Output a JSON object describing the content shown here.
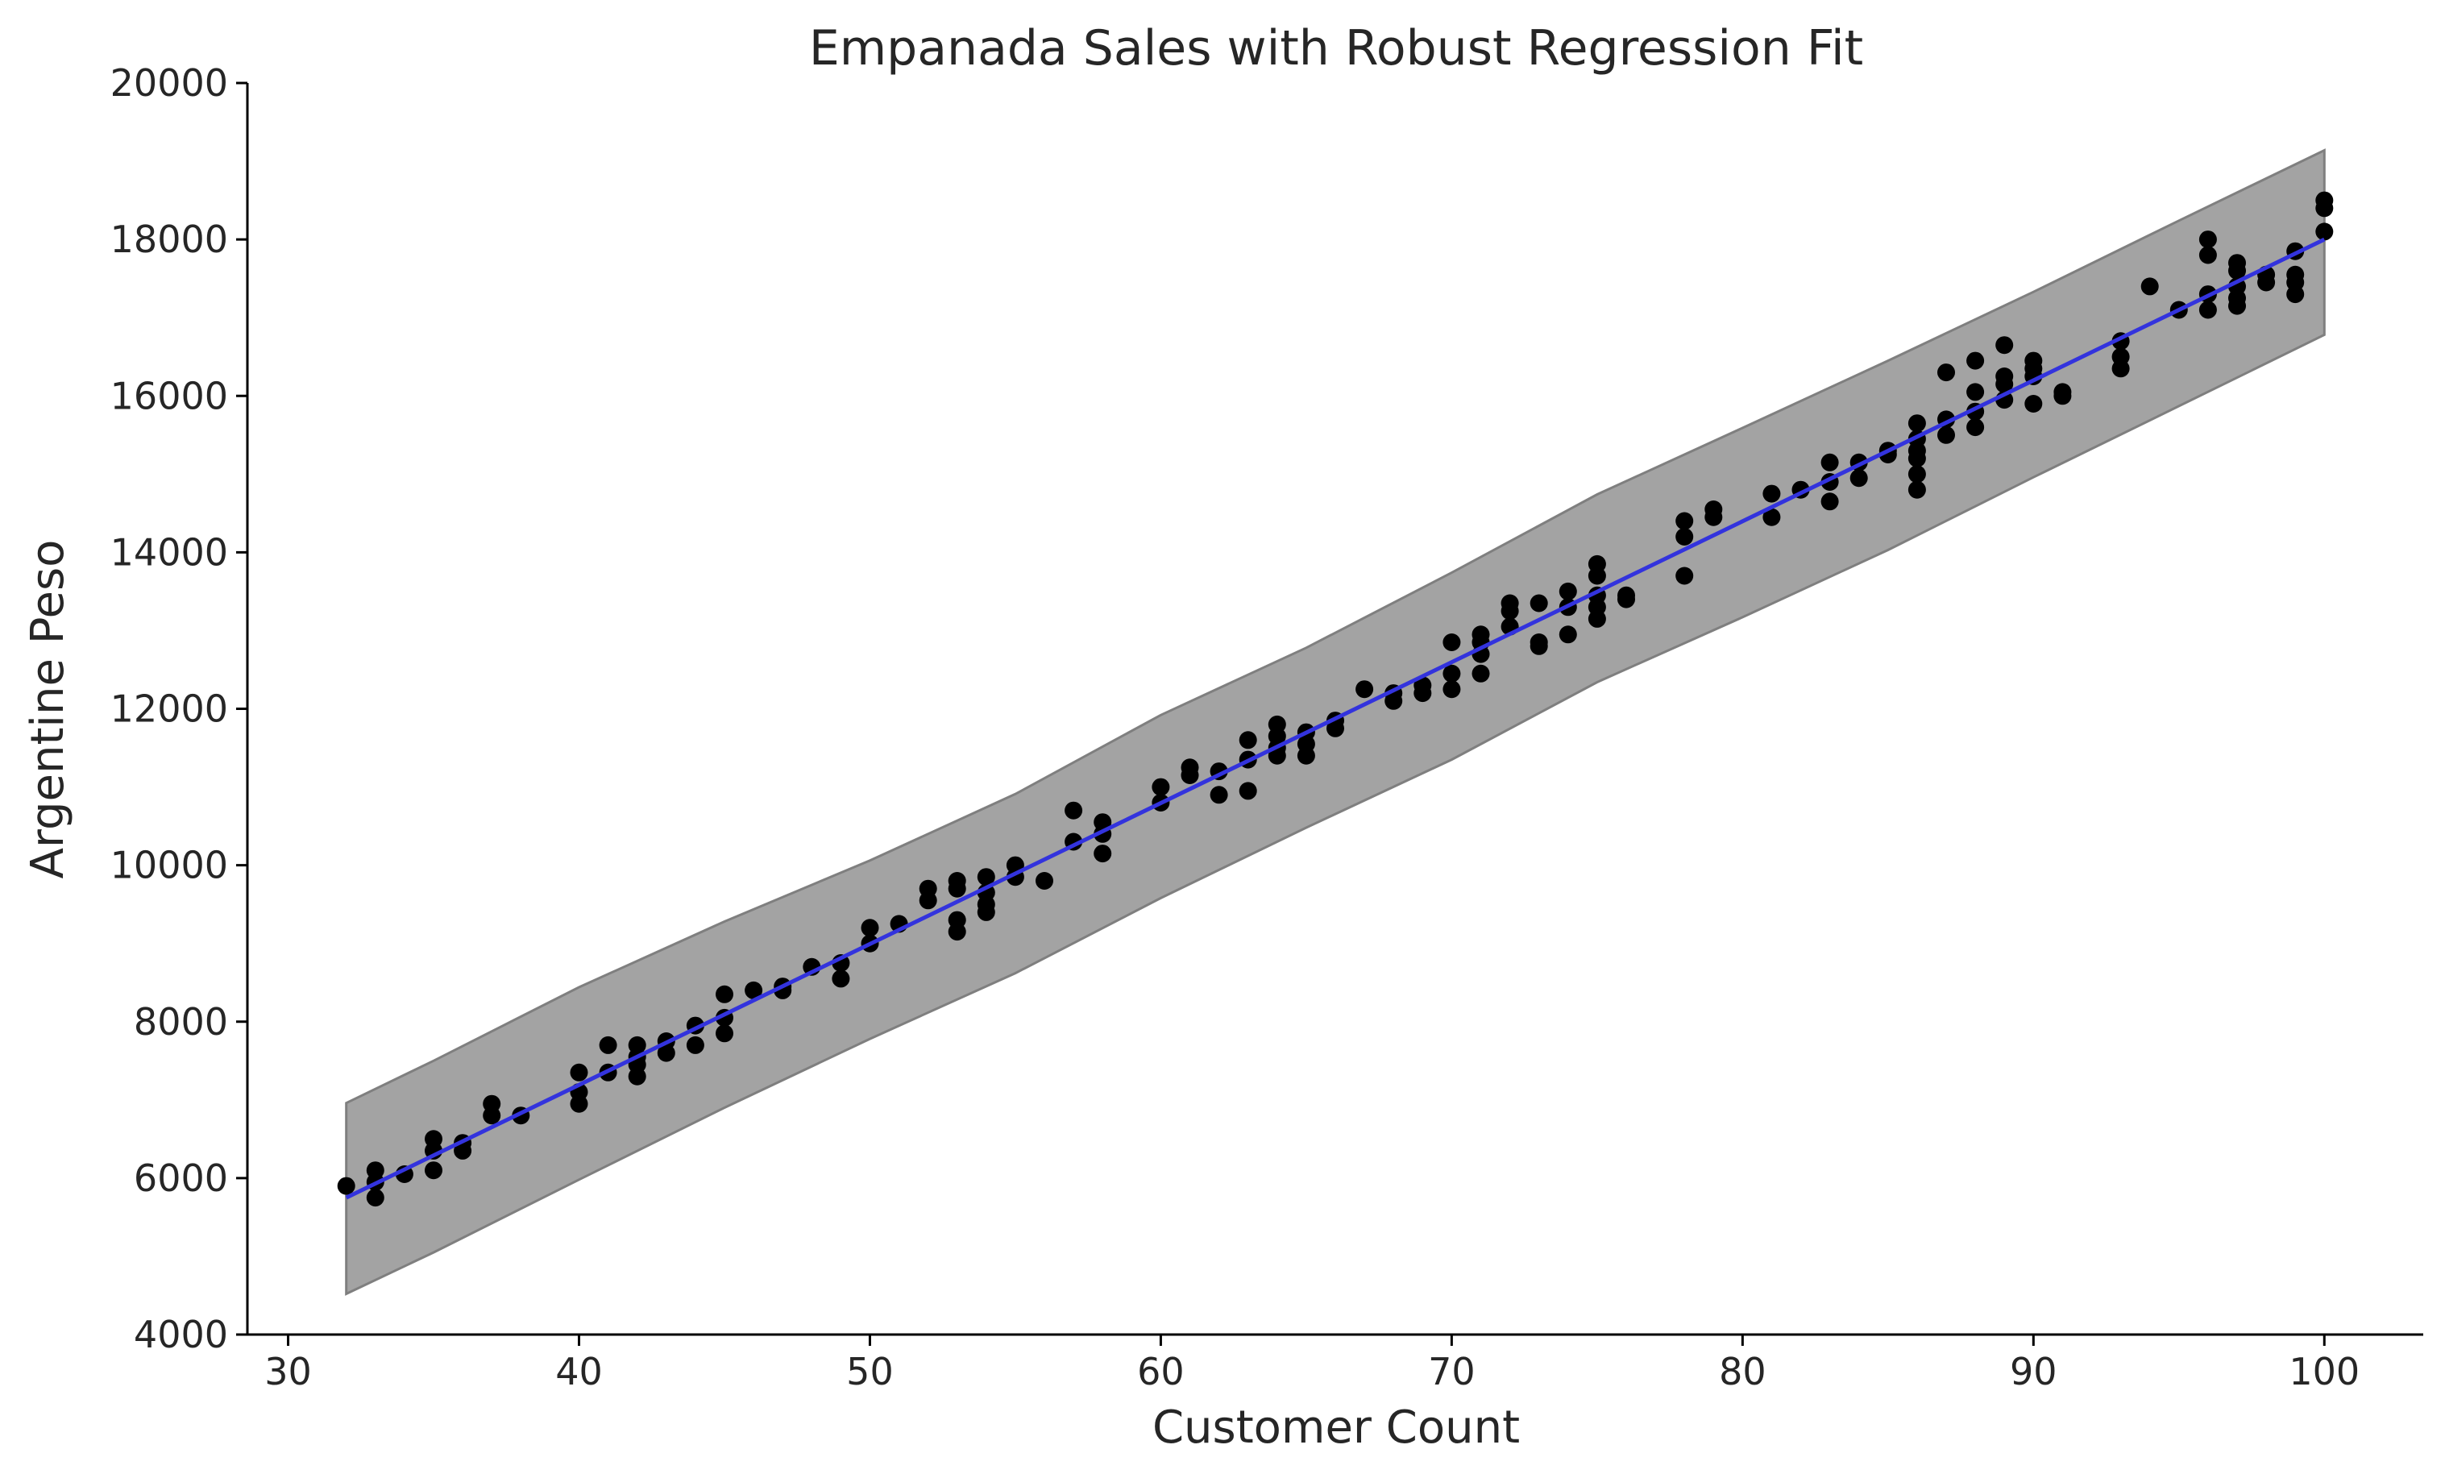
{
  "chart_data": {
    "type": "scatter",
    "title": "Empanada Sales with Robust Regression Fit",
    "xlabel": "Customer Count",
    "ylabel": "Argentine Peso",
    "xlim": [
      28.6,
      103.4
    ],
    "ylim": [
      4000,
      20000
    ],
    "xticks": [
      30,
      40,
      50,
      60,
      70,
      80,
      90,
      100
    ],
    "yticks": [
      4000,
      6000,
      8000,
      10000,
      12000,
      14000,
      16000,
      18000,
      20000
    ],
    "grid": false,
    "colors": {
      "points": "#000000",
      "fit_line": "#3333dd",
      "band": "#a3a3a3",
      "band_edge": "#7f7f7f",
      "axis": "#000000",
      "text": "#262626"
    },
    "fit_line": {
      "x": [
        32,
        100
      ],
      "y": [
        5750,
        18000
      ]
    },
    "interval_band": {
      "x": [
        32,
        35,
        40,
        45,
        50,
        55,
        60,
        65,
        70,
        75,
        80,
        85,
        90,
        95,
        100
      ],
      "lower": [
        4520,
        5050,
        5980,
        6900,
        7780,
        8620,
        9580,
        10480,
        11350,
        12340,
        13170,
        14030,
        14960,
        15870,
        16780
      ],
      "upper": [
        6960,
        7500,
        8440,
        9280,
        10060,
        10910,
        11920,
        12780,
        13740,
        14740,
        15590,
        16450,
        17330,
        18240,
        19140
      ]
    },
    "points": [
      [
        32,
        5900
      ],
      [
        33,
        6100
      ],
      [
        33,
        5950
      ],
      [
        33,
        5750
      ],
      [
        34,
        6050
      ],
      [
        35,
        6500
      ],
      [
        35,
        6350
      ],
      [
        35,
        6100
      ],
      [
        36,
        6450
      ],
      [
        36,
        6350
      ],
      [
        37,
        6950
      ],
      [
        37,
        6800
      ],
      [
        38,
        6800
      ],
      [
        40,
        7350
      ],
      [
        40,
        7100
      ],
      [
        40,
        6950
      ],
      [
        41,
        7700
      ],
      [
        41,
        7350
      ],
      [
        42,
        7700
      ],
      [
        42,
        7550
      ],
      [
        42,
        7450
      ],
      [
        42,
        7300
      ],
      [
        43,
        7750
      ],
      [
        43,
        7600
      ],
      [
        44,
        7950
      ],
      [
        44,
        7700
      ],
      [
        45,
        8350
      ],
      [
        45,
        8050
      ],
      [
        45,
        7850
      ],
      [
        46,
        8400
      ],
      [
        47,
        8450
      ],
      [
        47,
        8400
      ],
      [
        48,
        8700
      ],
      [
        49,
        8750
      ],
      [
        49,
        8550
      ],
      [
        50,
        9200
      ],
      [
        50,
        9000
      ],
      [
        51,
        9250
      ],
      [
        52,
        9700
      ],
      [
        52,
        9550
      ],
      [
        53,
        9800
      ],
      [
        53,
        9700
      ],
      [
        53,
        9300
      ],
      [
        53,
        9150
      ],
      [
        54,
        9850
      ],
      [
        54,
        9650
      ],
      [
        54,
        9500
      ],
      [
        54,
        9400
      ],
      [
        55,
        10000
      ],
      [
        55,
        9850
      ],
      [
        56,
        9800
      ],
      [
        57,
        10700
      ],
      [
        57,
        10300
      ],
      [
        58,
        10550
      ],
      [
        58,
        10400
      ],
      [
        58,
        10150
      ],
      [
        60,
        11000
      ],
      [
        60,
        10800
      ],
      [
        61,
        11250
      ],
      [
        61,
        11150
      ],
      [
        62,
        11200
      ],
      [
        62,
        10900
      ],
      [
        63,
        11600
      ],
      [
        63,
        11350
      ],
      [
        63,
        10950
      ],
      [
        64,
        11800
      ],
      [
        64,
        11650
      ],
      [
        64,
        11500
      ],
      [
        64,
        11400
      ],
      [
        65,
        11700
      ],
      [
        65,
        11550
      ],
      [
        65,
        11400
      ],
      [
        66,
        11850
      ],
      [
        66,
        11750
      ],
      [
        67,
        12250
      ],
      [
        68,
        12200
      ],
      [
        68,
        12100
      ],
      [
        69,
        12300
      ],
      [
        69,
        12200
      ],
      [
        70,
        12850
      ],
      [
        70,
        12450
      ],
      [
        70,
        12250
      ],
      [
        71,
        12950
      ],
      [
        71,
        12850
      ],
      [
        71,
        12700
      ],
      [
        71,
        12450
      ],
      [
        72,
        13350
      ],
      [
        72,
        13250
      ],
      [
        72,
        13050
      ],
      [
        73,
        13350
      ],
      [
        73,
        12850
      ],
      [
        73,
        12800
      ],
      [
        74,
        13500
      ],
      [
        74,
        13300
      ],
      [
        74,
        12950
      ],
      [
        75,
        13850
      ],
      [
        75,
        13700
      ],
      [
        75,
        13450
      ],
      [
        75,
        13300
      ],
      [
        75,
        13150
      ],
      [
        76,
        13450
      ],
      [
        76,
        13400
      ],
      [
        78,
        14400
      ],
      [
        78,
        14200
      ],
      [
        78,
        13700
      ],
      [
        79,
        14550
      ],
      [
        79,
        14450
      ],
      [
        81,
        14750
      ],
      [
        81,
        14450
      ],
      [
        82,
        14800
      ],
      [
        83,
        15150
      ],
      [
        83,
        14900
      ],
      [
        83,
        14650
      ],
      [
        84,
        15150
      ],
      [
        84,
        14950
      ],
      [
        85,
        15300
      ],
      [
        85,
        15250
      ],
      [
        86,
        15650
      ],
      [
        86,
        15450
      ],
      [
        86,
        15300
      ],
      [
        86,
        15200
      ],
      [
        86,
        15000
      ],
      [
        86,
        14800
      ],
      [
        87,
        16300
      ],
      [
        87,
        15700
      ],
      [
        87,
        15500
      ],
      [
        88,
        16450
      ],
      [
        88,
        16050
      ],
      [
        88,
        15800
      ],
      [
        88,
        15600
      ],
      [
        89,
        16650
      ],
      [
        89,
        16250
      ],
      [
        89,
        16150
      ],
      [
        89,
        15950
      ],
      [
        90,
        16450
      ],
      [
        90,
        16350
      ],
      [
        90,
        16250
      ],
      [
        90,
        15900
      ],
      [
        91,
        16050
      ],
      [
        91,
        16000
      ],
      [
        93,
        16700
      ],
      [
        93,
        16500
      ],
      [
        93,
        16350
      ],
      [
        94,
        17400
      ],
      [
        95,
        17100
      ],
      [
        96,
        18000
      ],
      [
        96,
        17800
      ],
      [
        96,
        17300
      ],
      [
        96,
        17100
      ],
      [
        97,
        17700
      ],
      [
        97,
        17600
      ],
      [
        97,
        17400
      ],
      [
        97,
        17250
      ],
      [
        97,
        17150
      ],
      [
        98,
        17550
      ],
      [
        98,
        17450
      ],
      [
        99,
        17850
      ],
      [
        99,
        17550
      ],
      [
        99,
        17450
      ],
      [
        99,
        17300
      ],
      [
        100,
        18500
      ],
      [
        100,
        18400
      ],
      [
        100,
        18100
      ]
    ]
  }
}
